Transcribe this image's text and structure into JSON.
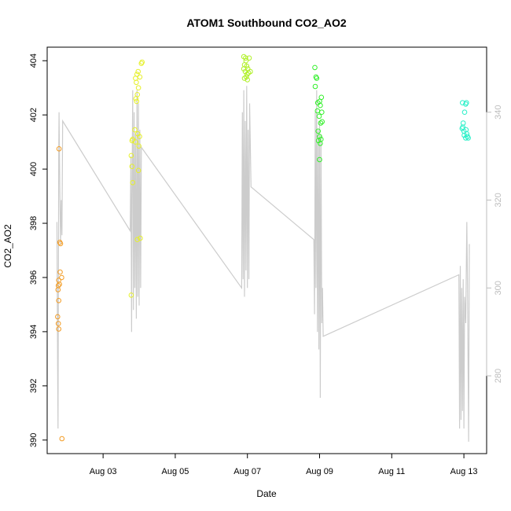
{
  "chart_data": {
    "type": "scatter",
    "title": "ATOM1 Southbound CO2_AO2",
    "xlabel": "Date",
    "ylabel": "CO2_AO2",
    "x_ticks": [
      "Aug 03",
      "Aug 05",
      "Aug 07",
      "Aug 09",
      "Aug 11",
      "Aug 13"
    ],
    "x_tick_values": [
      3,
      5,
      7,
      9,
      11,
      13
    ],
    "xlim": [
      1.45,
      13.63
    ],
    "ylim": [
      389.5,
      404.5
    ],
    "y_ticks": [
      390,
      392,
      394,
      396,
      398,
      400,
      402,
      404
    ],
    "secondary_axis": {
      "ylim": [
        262.3,
        354.8
      ],
      "ticks": [
        280,
        300,
        320,
        340
      ],
      "color": "#bdbdbd",
      "line_color": "#cccccc"
    },
    "grid": false,
    "series": [
      {
        "color": "#f39c24",
        "points": [
          [
            1.78,
            400.75
          ],
          [
            1.8,
            397.3
          ],
          [
            1.82,
            397.25
          ],
          [
            1.77,
            395.9
          ],
          [
            1.76,
            395.7
          ],
          [
            1.79,
            395.75
          ],
          [
            1.85,
            396
          ],
          [
            1.81,
            396.2
          ],
          [
            1.75,
            395.55
          ],
          [
            1.77,
            395.15
          ],
          [
            1.74,
            394.55
          ],
          [
            1.76,
            394.3
          ],
          [
            1.77,
            394.1
          ],
          [
            1.86,
            390.05
          ]
        ]
      },
      {
        "color": "#e6f02a",
        "points": [
          [
            3.78,
            395.35
          ],
          [
            3.8,
            401.05
          ],
          [
            3.82,
            401.1
          ],
          [
            3.78,
            400.5
          ],
          [
            3.8,
            400.1
          ],
          [
            3.82,
            399.5
          ],
          [
            3.9,
            403.35
          ],
          [
            3.94,
            403.5
          ],
          [
            3.97,
            403.6
          ],
          [
            4.02,
            403.4
          ],
          [
            4.08,
            403.95
          ],
          [
            4.06,
            403.9
          ],
          [
            3.92,
            403.2
          ],
          [
            3.98,
            403
          ],
          [
            3.91,
            402.6
          ],
          [
            3.95,
            402.75
          ],
          [
            3.93,
            402.5
          ],
          [
            3.96,
            401.3
          ],
          [
            4.01,
            401.2
          ],
          [
            3.9,
            401
          ],
          [
            3.88,
            401.45
          ],
          [
            3.99,
            400.85
          ],
          [
            4.03,
            397.45
          ],
          [
            3.95,
            397.4
          ],
          [
            3.98,
            399.95
          ]
        ]
      },
      {
        "color": "#b0f028",
        "points": [
          [
            6.9,
            404.15
          ],
          [
            6.95,
            404.1
          ],
          [
            7.05,
            404.1
          ],
          [
            6.92,
            403.85
          ],
          [
            6.98,
            403.8
          ],
          [
            6.9,
            403.7
          ],
          [
            6.94,
            403.6
          ],
          [
            6.99,
            403.5
          ],
          [
            7.03,
            403.55
          ],
          [
            7.08,
            403.6
          ],
          [
            6.97,
            403.4
          ],
          [
            7.0,
            403.3
          ],
          [
            6.92,
            403.35
          ],
          [
            7.01,
            403.7
          ],
          [
            6.96,
            404.0
          ]
        ]
      },
      {
        "color": "#32f02a",
        "points": [
          [
            8.87,
            403.75
          ],
          [
            8.9,
            403.4
          ],
          [
            8.92,
            403.35
          ],
          [
            8.88,
            403.05
          ],
          [
            8.95,
            402.45
          ],
          [
            9.05,
            402.65
          ],
          [
            9.0,
            402.5
          ],
          [
            9.02,
            402.35
          ],
          [
            8.94,
            402.15
          ],
          [
            9.06,
            402.1
          ],
          [
            8.99,
            401.95
          ],
          [
            9.07,
            401.75
          ],
          [
            9.03,
            401.7
          ],
          [
            8.96,
            401.4
          ],
          [
            9.0,
            401.2
          ],
          [
            8.97,
            401.05
          ],
          [
            9.04,
            401.1
          ],
          [
            9.02,
            400.95
          ],
          [
            9.0,
            400.35
          ]
        ]
      },
      {
        "color": "#28f0c8",
        "points": [
          [
            12.96,
            402.45
          ],
          [
            13.05,
            402.4
          ],
          [
            13.07,
            402.45
          ],
          [
            13.02,
            402.1
          ],
          [
            12.98,
            401.7
          ],
          [
            12.95,
            401.5
          ],
          [
            13.0,
            401.4
          ],
          [
            13.08,
            401.3
          ],
          [
            13.05,
            401.15
          ],
          [
            13.1,
            401.2
          ],
          [
            13.06,
            401.45
          ],
          [
            12.97,
            401.55
          ],
          [
            13.12,
            401.15
          ],
          [
            13.01,
            401.25
          ]
        ]
      }
    ],
    "secondary_line": [
      [
        1.72,
        315
      ],
      [
        1.74,
        282
      ],
      [
        1.75,
        268
      ],
      [
        1.77,
        330
      ],
      [
        1.78,
        340
      ],
      [
        1.8,
        322
      ],
      [
        1.82,
        310
      ],
      [
        1.84,
        320
      ],
      [
        1.86,
        312
      ],
      [
        1.88,
        338
      ],
      [
        3.75,
        313
      ],
      [
        3.77,
        330
      ],
      [
        3.79,
        290
      ],
      [
        3.8,
        320
      ],
      [
        3.82,
        345
      ],
      [
        3.84,
        295
      ],
      [
        3.86,
        340
      ],
      [
        3.88,
        300
      ],
      [
        3.9,
        335
      ],
      [
        3.92,
        293
      ],
      [
        3.94,
        345
      ],
      [
        3.96,
        298
      ],
      [
        3.98,
        342
      ],
      [
        4.0,
        296
      ],
      [
        4.02,
        336
      ],
      [
        4.04,
        300
      ],
      [
        4.06,
        332
      ],
      [
        6.84,
        300
      ],
      [
        6.86,
        340
      ],
      [
        6.88,
        302
      ],
      [
        6.9,
        345
      ],
      [
        6.92,
        298
      ],
      [
        6.94,
        338
      ],
      [
        6.96,
        304
      ],
      [
        6.98,
        346
      ],
      [
        7.0,
        300
      ],
      [
        7.02,
        336
      ],
      [
        7.04,
        302
      ],
      [
        7.06,
        342
      ],
      [
        7.1,
        323
      ],
      [
        8.84,
        311
      ],
      [
        8.86,
        294
      ],
      [
        8.88,
        340
      ],
      [
        8.9,
        300
      ],
      [
        8.92,
        345
      ],
      [
        8.94,
        290
      ],
      [
        8.96,
        336
      ],
      [
        8.98,
        286
      ],
      [
        9.0,
        338
      ],
      [
        9.02,
        275
      ],
      [
        9.04,
        335
      ],
      [
        9.06,
        292
      ],
      [
        9.08,
        300
      ],
      [
        9.1,
        289
      ],
      [
        12.86,
        303
      ],
      [
        12.88,
        268
      ],
      [
        12.9,
        305
      ],
      [
        12.92,
        270
      ],
      [
        12.94,
        300
      ],
      [
        12.96,
        272
      ],
      [
        12.98,
        302
      ],
      [
        13.0,
        268
      ],
      [
        13.02,
        298
      ],
      [
        13.05,
        292
      ],
      [
        13.08,
        315
      ],
      [
        13.1,
        300
      ],
      [
        13.13,
        265
      ],
      [
        13.15,
        310
      ]
    ]
  }
}
